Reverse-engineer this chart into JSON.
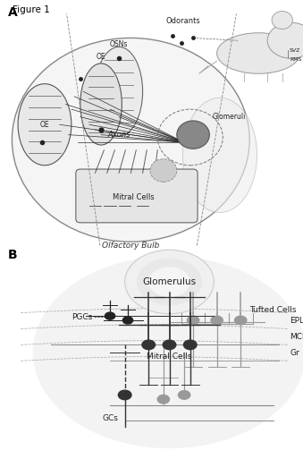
{
  "title": "Figure 1",
  "panel_A_label": "A",
  "panel_B_label": "B",
  "bg_color": "#ffffff",
  "panel_A": {
    "olfactory_bulb_label": "Olfactory Bulb",
    "odorants_label": "Odorants",
    "SVZ_label": "SVZ",
    "RMS_label": "RMS",
    "OSNs_label": "OSNs",
    "OE_label": "OE",
    "Axons_label": "Axons",
    "Glomeruli_label": "Glomeruli",
    "MitralCells_label": "Mitral Cells"
  },
  "panel_B": {
    "Glomerulus_label": "Glomerulus",
    "PGCs_label": "PGCs",
    "TuftedCells_label": "Tufted Cells",
    "EPL_label": "EPL",
    "MCL_label": "MCL",
    "Gr_label": "Gr",
    "MitralCells_label": "Mitral Cells",
    "GCs_label": "GCs"
  },
  "dark": "#222222",
  "mid": "#666666",
  "light": "#aaaaaa",
  "vlight": "#d8d8d8",
  "bg_panel": "#eeeeee"
}
